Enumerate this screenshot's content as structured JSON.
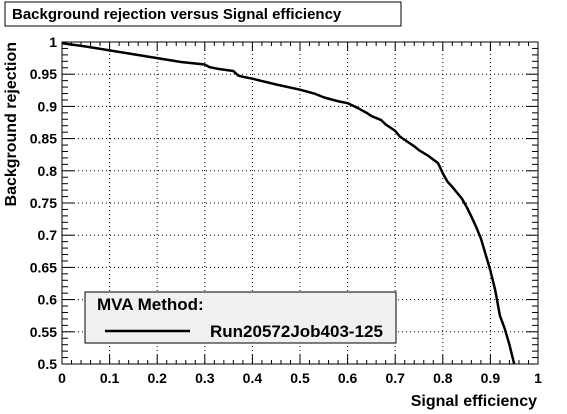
{
  "chart_data": {
    "type": "line",
    "title": "Background rejection versus Signal efficiency",
    "xlabel": "Signal efficiency",
    "ylabel": "Background rejection",
    "xlim": [
      0,
      1
    ],
    "ylim": [
      0.5,
      1
    ],
    "x_ticks": [
      "0",
      "0.1",
      "0.2",
      "0.3",
      "0.4",
      "0.5",
      "0.6",
      "0.7",
      "0.8",
      "0.9",
      "1"
    ],
    "y_ticks": [
      "0.5",
      "0.55",
      "0.6",
      "0.65",
      "0.7",
      "0.75",
      "0.8",
      "0.85",
      "0.9",
      "0.95",
      "1"
    ],
    "grid": true,
    "legend": {
      "header": "MVA Method:",
      "placement": "bottom-left"
    },
    "series": [
      {
        "name": "Run20572Job403-125",
        "color": "#000000",
        "x": [
          0.0,
          0.05,
          0.1,
          0.15,
          0.2,
          0.25,
          0.3,
          0.31,
          0.33,
          0.36,
          0.37,
          0.38,
          0.4,
          0.45,
          0.5,
          0.53,
          0.55,
          0.58,
          0.6,
          0.62,
          0.64,
          0.65,
          0.67,
          0.68,
          0.7,
          0.71,
          0.72,
          0.74,
          0.75,
          0.77,
          0.79,
          0.8,
          0.81,
          0.82,
          0.84,
          0.85,
          0.86,
          0.87,
          0.88,
          0.89,
          0.9,
          0.91,
          0.92,
          0.93,
          0.94,
          0.95
        ],
        "y": [
          0.998,
          0.993,
          0.987,
          0.981,
          0.975,
          0.969,
          0.965,
          0.961,
          0.958,
          0.955,
          0.948,
          0.946,
          0.943,
          0.934,
          0.926,
          0.92,
          0.914,
          0.908,
          0.905,
          0.898,
          0.89,
          0.885,
          0.879,
          0.872,
          0.862,
          0.853,
          0.848,
          0.838,
          0.832,
          0.823,
          0.812,
          0.796,
          0.783,
          0.775,
          0.757,
          0.744,
          0.729,
          0.713,
          0.695,
          0.67,
          0.645,
          0.615,
          0.575,
          0.555,
          0.53,
          0.5
        ]
      }
    ]
  }
}
